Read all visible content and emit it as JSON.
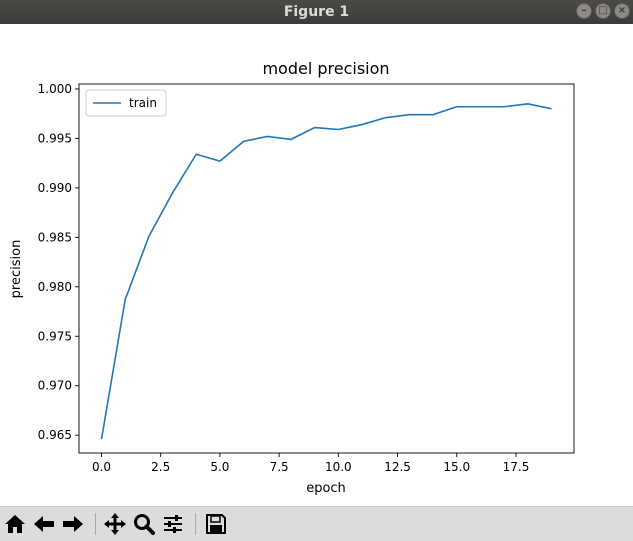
{
  "window": {
    "title": "Figure 1"
  },
  "chart_data": {
    "type": "line",
    "title": "model precision",
    "xlabel": "epoch",
    "ylabel": "precision",
    "xlim": [
      -0.95,
      19.95
    ],
    "ylim": [
      0.9632,
      1.0005
    ],
    "x_ticks": [
      0.0,
      2.5,
      5.0,
      7.5,
      10.0,
      12.5,
      15.0,
      17.5
    ],
    "x_tick_labels": [
      "0.0",
      "2.5",
      "5.0",
      "7.5",
      "10.0",
      "12.5",
      "15.0",
      "17.5"
    ],
    "y_ticks": [
      0.965,
      0.97,
      0.975,
      0.98,
      0.985,
      0.99,
      0.995,
      1.0
    ],
    "y_tick_labels": [
      "0.965",
      "0.970",
      "0.975",
      "0.980",
      "0.985",
      "0.990",
      "0.995",
      "1.000"
    ],
    "legend_position": "top-left",
    "grid": false,
    "series": [
      {
        "name": "train",
        "color": "#1f77b4",
        "x": [
          0,
          1,
          2,
          3,
          4,
          5,
          6,
          7,
          8,
          9,
          10,
          11,
          12,
          13,
          14,
          15,
          16,
          17,
          18,
          19
        ],
        "y": [
          0.9646,
          0.9787,
          0.9851,
          0.9895,
          0.9934,
          0.9927,
          0.9947,
          0.9952,
          0.9949,
          0.9961,
          0.9959,
          0.9964,
          0.9971,
          0.9974,
          0.9974,
          0.9982,
          0.9982,
          0.9982,
          0.9985,
          0.998
        ]
      }
    ]
  },
  "toolbar": {
    "buttons": [
      {
        "name": "home-button",
        "icon": "home-icon"
      },
      {
        "name": "back-button",
        "icon": "arrow-left-icon"
      },
      {
        "name": "forward-button",
        "icon": "arrow-right-icon"
      },
      {
        "name": "pan-button",
        "icon": "move-icon"
      },
      {
        "name": "zoom-button",
        "icon": "magnifier-icon"
      },
      {
        "name": "subplots-button",
        "icon": "sliders-icon"
      },
      {
        "name": "save-button",
        "icon": "floppy-icon"
      }
    ]
  }
}
